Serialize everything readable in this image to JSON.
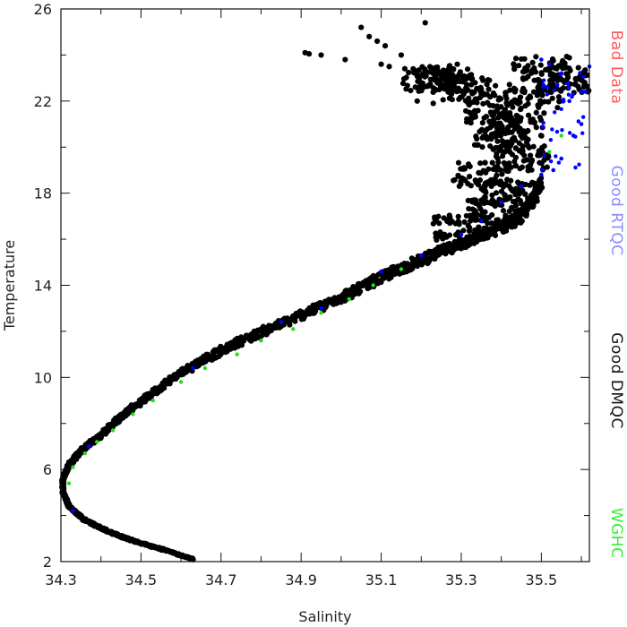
{
  "chart_data": {
    "type": "scatter",
    "title": "",
    "xlabel": "Salinity",
    "ylabel": "Temperature",
    "xlim": [
      34.3,
      35.62
    ],
    "ylim": [
      2,
      26
    ],
    "x_ticks": [
      34.3,
      34.5,
      34.7,
      34.9,
      35.1,
      35.3,
      35.5
    ],
    "x_tick_labels": [
      "34.3",
      "34.5",
      "34.7",
      "34.9",
      "35.1",
      "35.3",
      "35.5"
    ],
    "y_ticks": [
      2,
      6,
      10,
      14,
      18,
      22,
      26
    ],
    "y_tick_labels": [
      "2",
      "6",
      "10",
      "14",
      "18",
      "22",
      "26"
    ],
    "grid": false,
    "legend": {
      "placement": "right, vertical",
      "entries": [
        {
          "label": "Bad Data",
          "color": "#ff5a5a"
        },
        {
          "label": "Good RTQC",
          "color": "#8a8aff"
        },
        {
          "label": "Good DMQC",
          "color": "#111111"
        },
        {
          "label": "WGHC",
          "color": "#33ee33"
        }
      ]
    },
    "series": [
      {
        "name": "Good DMQC",
        "color": "#000000",
        "profile": [
          [
            34.63,
            2.1
          ],
          [
            34.56,
            2.5
          ],
          [
            34.48,
            2.9
          ],
          [
            34.42,
            3.3
          ],
          [
            34.36,
            3.8
          ],
          [
            34.32,
            4.4
          ],
          [
            34.305,
            5.0
          ],
          [
            34.305,
            5.6
          ],
          [
            34.32,
            6.2
          ],
          [
            34.35,
            6.8
          ],
          [
            34.4,
            7.5
          ],
          [
            34.45,
            8.3
          ],
          [
            34.52,
            9.2
          ],
          [
            34.58,
            10.0
          ],
          [
            34.66,
            10.8
          ],
          [
            34.74,
            11.5
          ],
          [
            34.82,
            12.1
          ],
          [
            34.9,
            12.7
          ],
          [
            34.98,
            13.3
          ],
          [
            35.05,
            13.9
          ],
          [
            35.12,
            14.5
          ],
          [
            35.2,
            15.1
          ],
          [
            35.27,
            15.6
          ],
          [
            35.33,
            16.0
          ],
          [
            35.4,
            16.5
          ],
          [
            35.45,
            17.0
          ],
          [
            35.48,
            17.8
          ],
          [
            35.5,
            18.5
          ]
        ],
        "cluster": [
          [
            35.3,
            16.5
          ],
          [
            35.38,
            17.2
          ],
          [
            35.42,
            18.0
          ],
          [
            35.35,
            18.8
          ],
          [
            35.45,
            19.5
          ],
          [
            35.4,
            20.3
          ],
          [
            35.44,
            21.0
          ],
          [
            35.38,
            21.6
          ],
          [
            35.48,
            22.2
          ],
          [
            35.56,
            22.9
          ],
          [
            35.5,
            23.4
          ],
          [
            35.32,
            22.6
          ],
          [
            35.26,
            22.9
          ],
          [
            35.22,
            23.0
          ]
        ],
        "outliers": [
          [
            34.91,
            24.1
          ],
          [
            34.92,
            24.05
          ],
          [
            34.95,
            24.0
          ],
          [
            35.01,
            23.8
          ],
          [
            35.05,
            25.2
          ],
          [
            35.07,
            24.8
          ],
          [
            35.09,
            24.6
          ],
          [
            35.11,
            24.4
          ],
          [
            35.1,
            23.6
          ],
          [
            35.12,
            23.5
          ],
          [
            35.15,
            24.0
          ],
          [
            35.18,
            23.4
          ],
          [
            35.2,
            23.1
          ],
          [
            35.21,
            25.4
          ],
          [
            35.24,
            23.2
          ],
          [
            35.27,
            23.5
          ],
          [
            35.29,
            23.6
          ],
          [
            35.19,
            22.0
          ],
          [
            35.23,
            21.9
          ],
          [
            35.35,
            22.3
          ],
          [
            35.52,
            23.4
          ],
          [
            35.6,
            23.0
          ]
        ]
      },
      {
        "name": "Good RTQC",
        "color": "#0000ff",
        "points": [
          [
            35.5,
            23.8
          ],
          [
            35.52,
            23.6
          ],
          [
            35.54,
            22.7
          ],
          [
            35.57,
            22.0
          ],
          [
            35.6,
            21.0
          ],
          [
            35.58,
            20.5
          ],
          [
            35.55,
            19.5
          ],
          [
            35.53,
            19.0
          ],
          [
            35.5,
            18.8
          ],
          [
            35.45,
            18.3
          ],
          [
            35.4,
            17.6
          ],
          [
            35.35,
            16.8
          ],
          [
            35.3,
            16.2
          ],
          [
            35.2,
            15.3
          ],
          [
            35.1,
            14.6
          ],
          [
            34.95,
            13.0
          ],
          [
            34.85,
            12.4
          ],
          [
            34.63,
            10.4
          ],
          [
            34.37,
            7.0
          ],
          [
            34.33,
            4.2
          ],
          [
            35.62,
            23.5
          ],
          [
            35.55,
            23.2
          ],
          [
            35.61,
            22.4
          ]
        ]
      },
      {
        "name": "WGHC",
        "color": "#22dd22",
        "points": [
          [
            34.32,
            5.4
          ],
          [
            34.33,
            6.1
          ],
          [
            34.36,
            6.7
          ],
          [
            34.39,
            7.2
          ],
          [
            34.43,
            7.7
          ],
          [
            34.48,
            8.4
          ],
          [
            34.53,
            9.0
          ],
          [
            34.6,
            9.8
          ],
          [
            34.66,
            10.4
          ],
          [
            34.74,
            11.0
          ],
          [
            34.8,
            11.6
          ],
          [
            34.88,
            12.1
          ],
          [
            34.95,
            12.8
          ],
          [
            35.02,
            13.4
          ],
          [
            35.08,
            14.0
          ],
          [
            35.15,
            14.7
          ],
          [
            35.52,
            19.8
          ],
          [
            35.55,
            20.5
          ]
        ]
      }
    ]
  }
}
